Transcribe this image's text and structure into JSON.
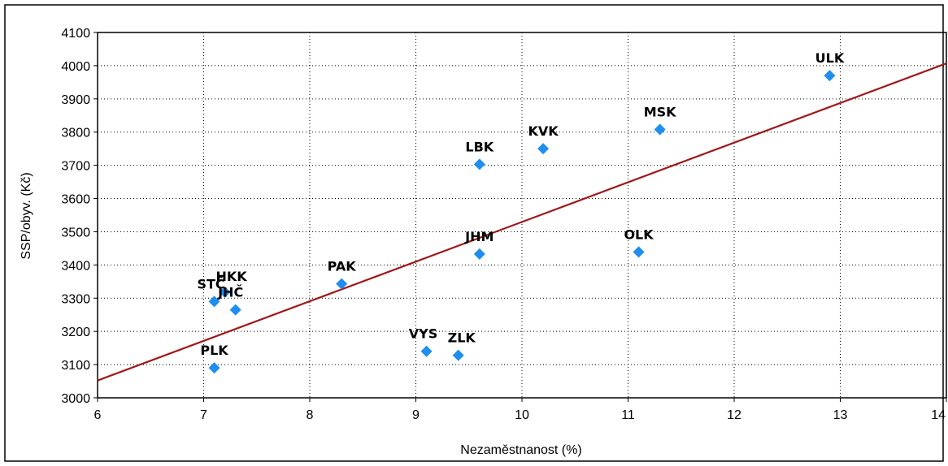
{
  "chart_data": {
    "type": "scatter",
    "title": "",
    "xlabel": "Nezaměstnanost (%)",
    "ylabel": "SSP/obyv. (Kč)",
    "xlim": [
      6,
      14
    ],
    "ylim": [
      3000,
      4100
    ],
    "x_ticks": [
      "6",
      "7",
      "8",
      "9",
      "10",
      "11",
      "12",
      "13",
      "14"
    ],
    "y_ticks": [
      "3000",
      "3100",
      "3200",
      "3300",
      "3400",
      "3500",
      "3600",
      "3700",
      "3800",
      "3900",
      "4000",
      "4100"
    ],
    "grid": true,
    "grid_style": "dotted",
    "point_color": "#1e8ef0",
    "trend_color": "#a01818",
    "points": [
      {
        "label": "ULK",
        "x": 12.9,
        "y": 3970
      },
      {
        "label": "MSK",
        "x": 11.3,
        "y": 3808
      },
      {
        "label": "KVK",
        "x": 10.2,
        "y": 3750
      },
      {
        "label": "LBK",
        "x": 9.6,
        "y": 3703
      },
      {
        "label": "JHM",
        "x": 9.6,
        "y": 3433
      },
      {
        "label": "OLK",
        "x": 11.1,
        "y": 3439
      },
      {
        "label": "PAK",
        "x": 8.3,
        "y": 3343
      },
      {
        "label": "HKK",
        "x": 7.2,
        "y": 3318
      },
      {
        "label": "STČ",
        "x": 7.1,
        "y": 3290
      },
      {
        "label": "JHČ",
        "x": 7.3,
        "y": 3265
      },
      {
        "label": "VYS",
        "x": 9.1,
        "y": 3140
      },
      {
        "label": "ZLK",
        "x": 9.4,
        "y": 3128
      },
      {
        "label": "PLK",
        "x": 7.1,
        "y": 3090
      }
    ],
    "trendline": {
      "x": [
        6,
        14
      ],
      "y": [
        3052,
        4007
      ]
    }
  }
}
